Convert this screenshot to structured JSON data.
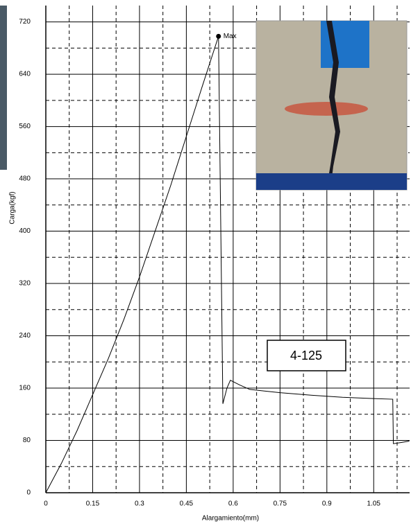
{
  "chart_data": {
    "type": "line",
    "x_label": "Alargamiento(mm)",
    "y_label": "Carga(kgf)",
    "annotation": "4-125",
    "x": [
      0,
      0.05,
      0.1,
      0.15,
      0.2,
      0.25,
      0.3,
      0.35,
      0.4,
      0.45,
      0.5,
      0.553,
      0.567,
      0.58,
      0.591,
      0.62,
      0.653,
      0.75,
      0.853,
      0.95,
      1.05,
      1.111,
      1.113,
      1.14,
      1.164
    ],
    "series": [
      {
        "color": "#000000",
        "values": [
          0,
          45,
          95,
          150,
          205,
          265,
          330,
          400,
          470,
          545,
          620,
          698,
          136,
          160,
          172,
          165,
          158,
          153,
          149,
          146,
          144,
          143,
          75,
          77,
          79
        ]
      }
    ],
    "max_point": {
      "x": 0.553,
      "y": 698,
      "label": "Max"
    },
    "xlim": [
      0,
      1.165
    ],
    "ylim": [
      0,
      745
    ],
    "xticks": [
      0,
      0.15,
      0.3,
      0.45,
      0.6,
      0.75,
      0.9,
      1.05
    ],
    "yticks": [
      0,
      80,
      160,
      240,
      320,
      400,
      480,
      560,
      640,
      720
    ],
    "grid": true
  }
}
